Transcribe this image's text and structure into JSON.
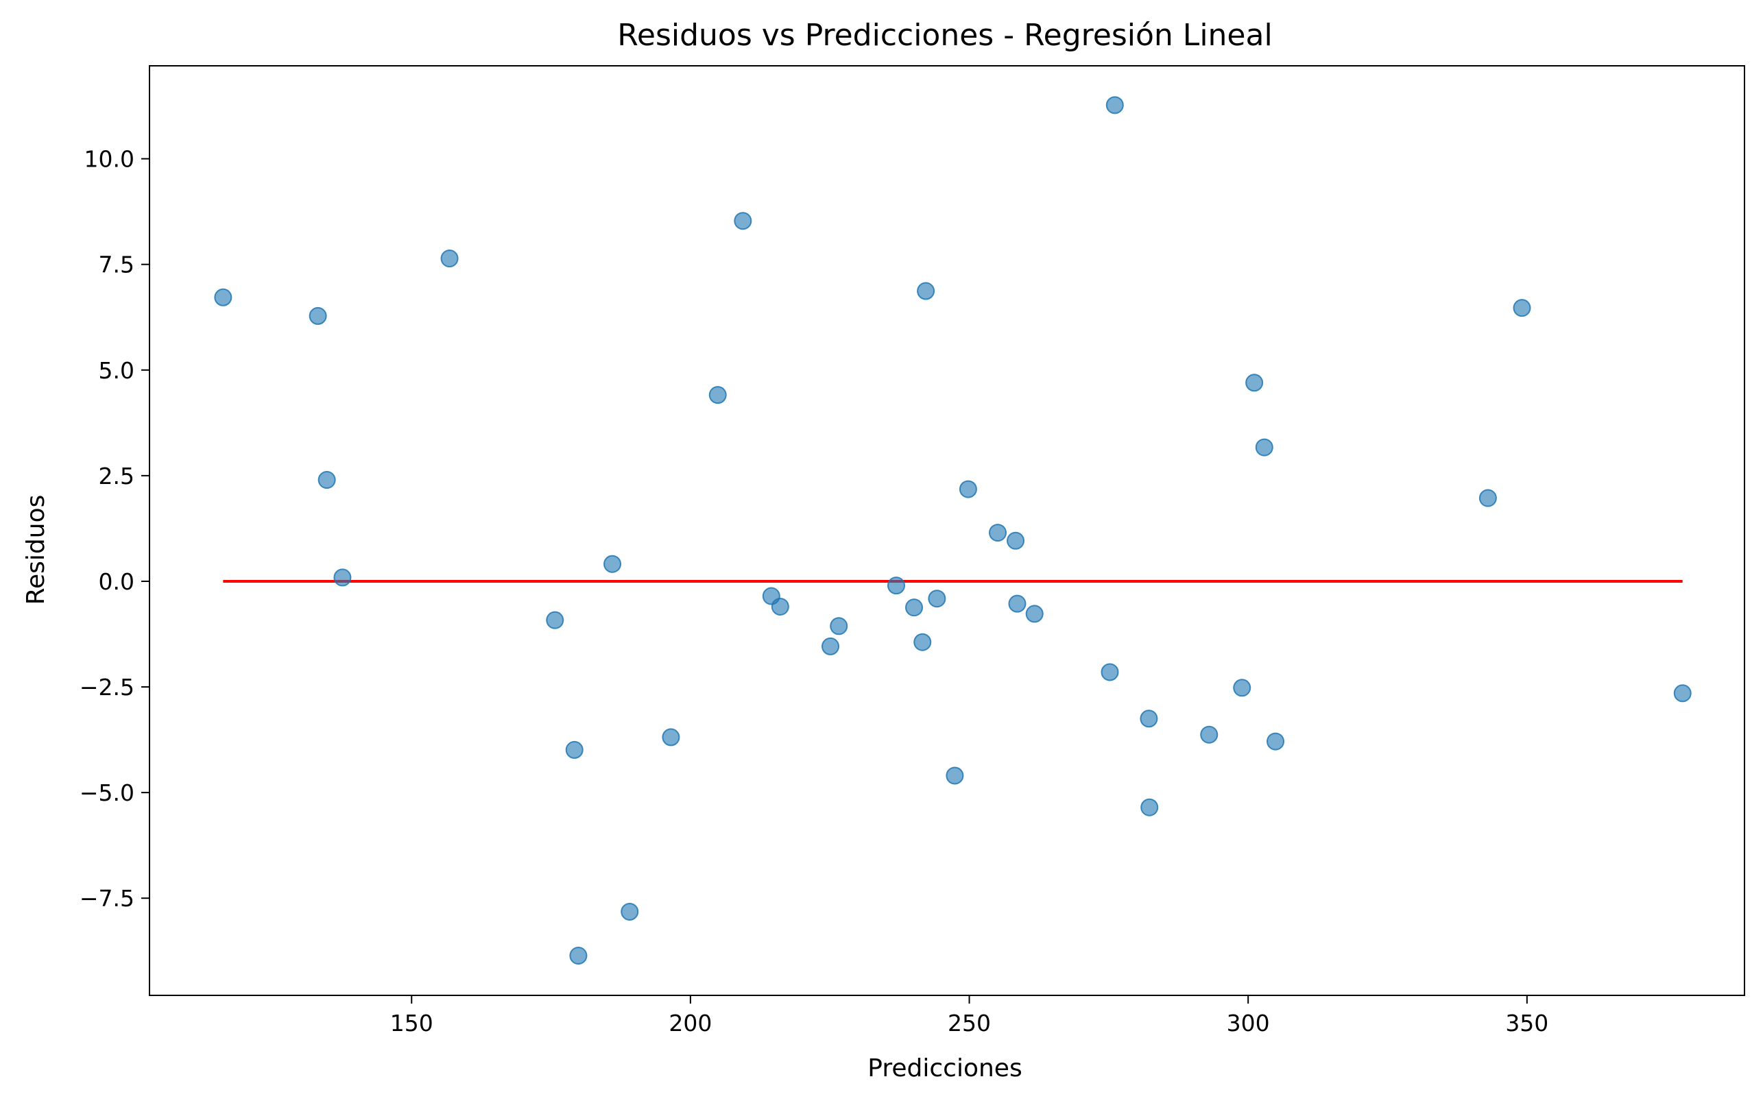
{
  "chart_data": {
    "type": "scatter",
    "title": "Residuos vs Predicciones - Regresión Lineal",
    "xlabel": "Predicciones",
    "ylabel": "Residuos",
    "xlim": [
      103,
      389
    ],
    "ylim": [
      -9.8,
      12.2
    ],
    "xticks": [
      150,
      200,
      250,
      300,
      350
    ],
    "xtick_labels": [
      "150",
      "200",
      "250",
      "300",
      "350"
    ],
    "yticks": [
      -7.5,
      -5.0,
      -2.5,
      0.0,
      2.5,
      5.0,
      7.5,
      10.0
    ],
    "ytick_labels": [
      "−7.5",
      "−5.0",
      "−2.5",
      "0.0",
      "2.5",
      "5.0",
      "7.5",
      "10.0"
    ],
    "grid": false,
    "point_color": "#1f77b4",
    "point_alpha": 0.6,
    "line_color": "#ff0000",
    "reference_line": {
      "x": [
        116.2,
        377.9
      ],
      "y": [
        0,
        0
      ]
    },
    "points": [
      {
        "x": 116.2,
        "y": 6.72
      },
      {
        "x": 133.2,
        "y": 6.28
      },
      {
        "x": 134.8,
        "y": 2.4
      },
      {
        "x": 137.6,
        "y": 0.09
      },
      {
        "x": 156.8,
        "y": 7.64
      },
      {
        "x": 175.7,
        "y": -0.92
      },
      {
        "x": 179.2,
        "y": -3.99
      },
      {
        "x": 179.9,
        "y": -8.86
      },
      {
        "x": 186.0,
        "y": 0.41
      },
      {
        "x": 189.1,
        "y": -7.82
      },
      {
        "x": 196.5,
        "y": -3.69
      },
      {
        "x": 204.9,
        "y": 4.41
      },
      {
        "x": 209.4,
        "y": 8.53
      },
      {
        "x": 214.5,
        "y": -0.35
      },
      {
        "x": 216.1,
        "y": -0.6
      },
      {
        "x": 225.1,
        "y": -1.54
      },
      {
        "x": 226.6,
        "y": -1.06
      },
      {
        "x": 236.9,
        "y": -0.1
      },
      {
        "x": 240.1,
        "y": -0.62
      },
      {
        "x": 241.6,
        "y": -1.44
      },
      {
        "x": 242.2,
        "y": 6.87
      },
      {
        "x": 244.2,
        "y": -0.41
      },
      {
        "x": 247.4,
        "y": -4.6
      },
      {
        "x": 249.8,
        "y": 2.18
      },
      {
        "x": 255.1,
        "y": 1.15
      },
      {
        "x": 258.3,
        "y": 0.96
      },
      {
        "x": 258.6,
        "y": -0.53
      },
      {
        "x": 261.7,
        "y": -0.77
      },
      {
        "x": 275.2,
        "y": -2.15
      },
      {
        "x": 276.1,
        "y": 11.27
      },
      {
        "x": 282.2,
        "y": -3.25
      },
      {
        "x": 282.3,
        "y": -5.35
      },
      {
        "x": 293.0,
        "y": -3.63
      },
      {
        "x": 298.9,
        "y": -2.52
      },
      {
        "x": 301.1,
        "y": 4.7
      },
      {
        "x": 302.9,
        "y": 3.17
      },
      {
        "x": 304.9,
        "y": -3.79
      },
      {
        "x": 343.0,
        "y": 1.97
      },
      {
        "x": 349.1,
        "y": 6.47
      },
      {
        "x": 377.9,
        "y": -2.65
      }
    ]
  }
}
